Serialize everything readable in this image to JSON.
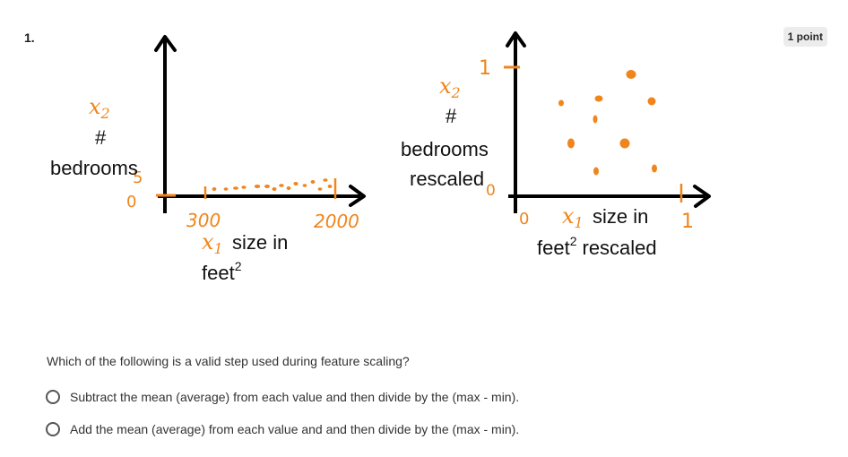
{
  "question": {
    "number": "1.",
    "points_badge": "1 point",
    "prompt": "Which of the following is a valid step used during feature scaling?",
    "options": [
      {
        "label": "Subtract the mean (average) from each value and then divide by the (max - min)."
      },
      {
        "label": "Add the mean (average) from each value and and then divide by the (max - min)."
      }
    ]
  },
  "figure": {
    "left_plot": {
      "y_var": "x",
      "y_sub": "2",
      "y_label_hash": "#",
      "y_label_word": "bedrooms",
      "y_tick_top": "5",
      "y_tick_bottom": "0",
      "x_tick_low": "300",
      "x_tick_high": "2000",
      "x_var": "x",
      "x_sub": "1",
      "x_label_line1": "size in",
      "x_label_line2": "feet",
      "x_label_sup": "2"
    },
    "right_plot": {
      "y_var": "x",
      "y_sub": "2",
      "y_label_hash": "#",
      "y_label_word1": "bedrooms",
      "y_label_word2": "rescaled",
      "y_tick_top": "1",
      "y_tick_bottom": "0",
      "x_tick_low": "0",
      "x_tick_high": "1",
      "x_var": "x",
      "x_sub": "1",
      "x_label_line1": "size in",
      "x_label_line2": "feet",
      "x_label_sup": "2",
      "x_label_suffix": "rescaled"
    },
    "colors": {
      "ink": "#f0851c",
      "axis": "#000000"
    }
  }
}
